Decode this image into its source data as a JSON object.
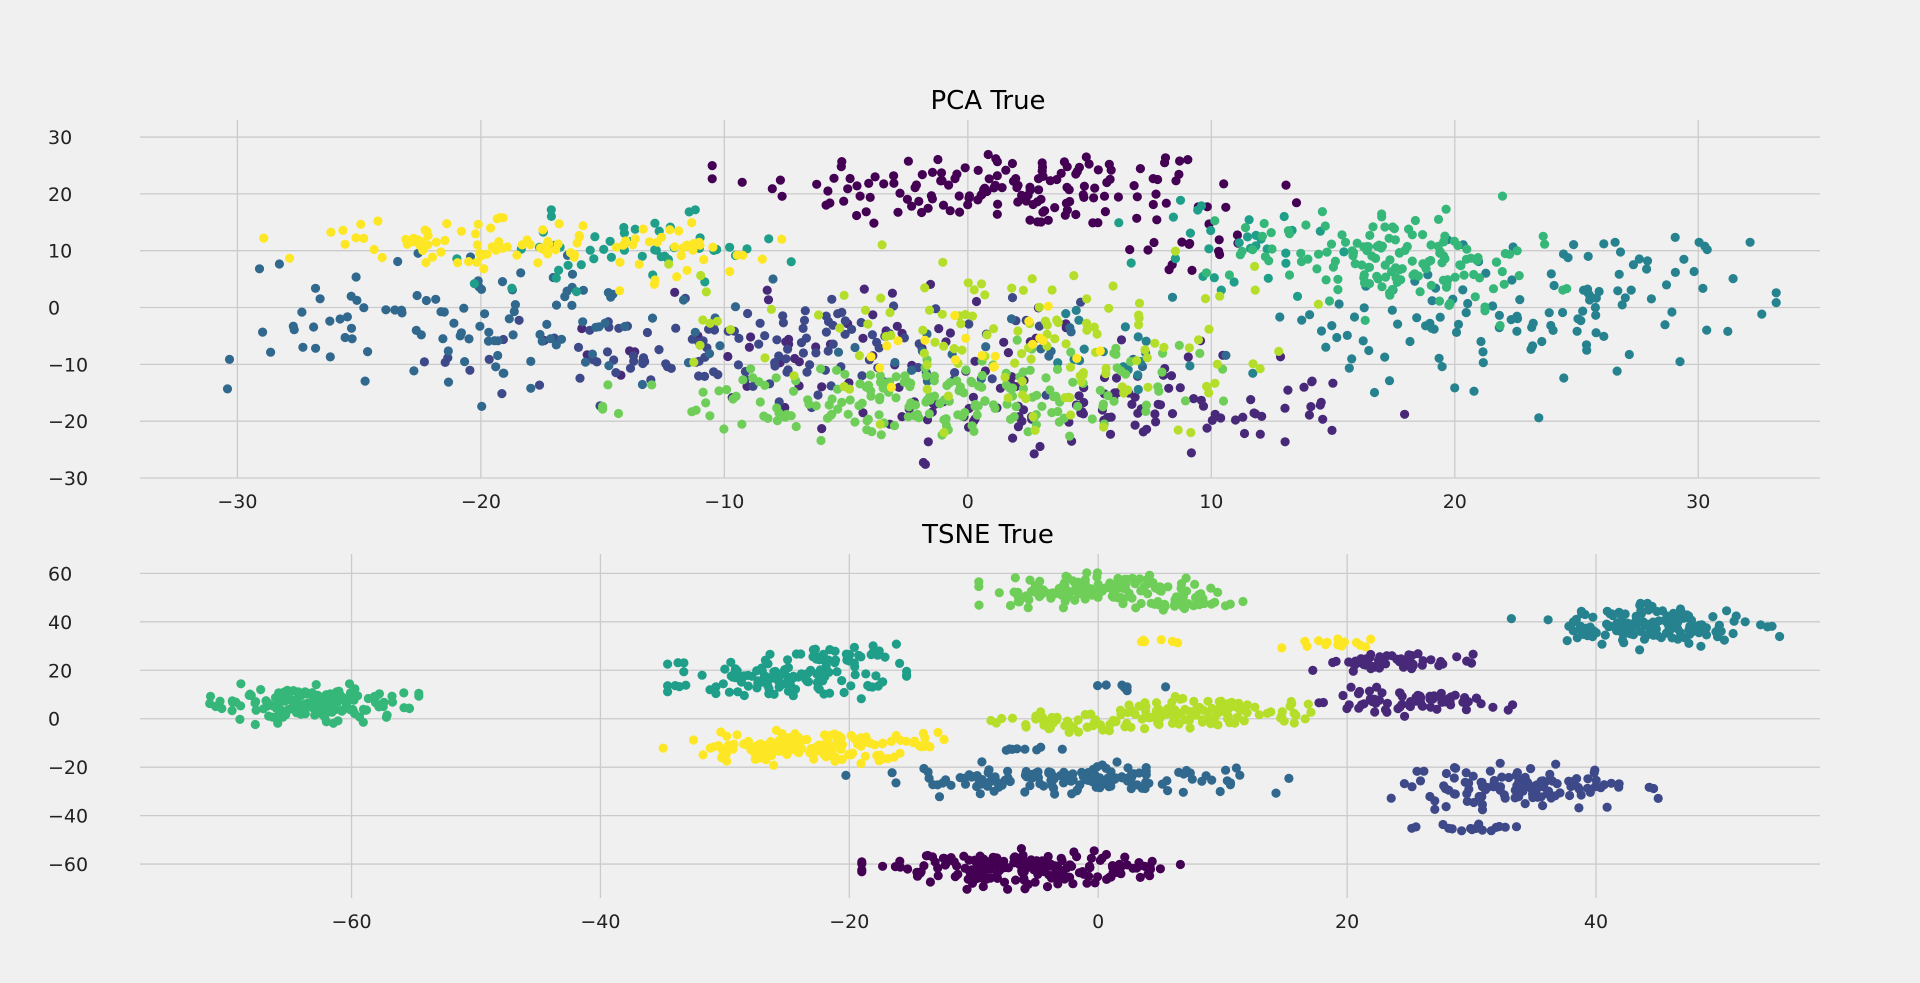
{
  "palette": [
    "#440154",
    "#482878",
    "#3e4989",
    "#31688e",
    "#26828e",
    "#1f9e89",
    "#35b779",
    "#6ece58",
    "#b5de2b",
    "#fde725"
  ],
  "chart_data": [
    {
      "type": "scatter",
      "title": "PCA True",
      "xlabel": "",
      "ylabel": "",
      "xlim": [
        -34.0,
        35.0
      ],
      "ylim": [
        -30.0,
        33.0
      ],
      "xticks": [
        -30,
        -20,
        -10,
        0,
        10,
        20,
        30
      ],
      "yticks": [
        -30,
        -20,
        -10,
        0,
        10,
        20,
        30
      ],
      "grid": true,
      "clusters": [
        {
          "class": 0,
          "center": [
            1.5,
            21
          ],
          "spread": [
            5,
            3.5
          ],
          "n": 150
        },
        {
          "class": 0,
          "center": [
            9,
            12
          ],
          "spread": [
            1.5,
            4
          ],
          "n": 20
        },
        {
          "class": 1,
          "center": [
            6,
            -18
          ],
          "spread": [
            5,
            4
          ],
          "n": 110
        },
        {
          "class": 1,
          "center": [
            -3,
            -6
          ],
          "spread": [
            6,
            5
          ],
          "n": 60
        },
        {
          "class": 2,
          "center": [
            -11,
            -8
          ],
          "spread": [
            5,
            4
          ],
          "n": 90
        },
        {
          "class": 2,
          "center": [
            -4,
            -7
          ],
          "spread": [
            4,
            4
          ],
          "n": 40
        },
        {
          "class": 3,
          "center": [
            -20,
            -3
          ],
          "spread": [
            5,
            6
          ],
          "n": 110
        },
        {
          "class": 3,
          "center": [
            1,
            -8
          ],
          "spread": [
            4,
            3
          ],
          "n": 20
        },
        {
          "class": 4,
          "center": [
            26,
            2
          ],
          "spread": [
            3,
            6
          ],
          "n": 80
        },
        {
          "class": 4,
          "center": [
            18,
            -5
          ],
          "spread": [
            4,
            6
          ],
          "n": 50
        },
        {
          "class": 4,
          "center": [
            6,
            -8
          ],
          "spread": [
            3,
            4
          ],
          "n": 20
        },
        {
          "class": 5,
          "center": [
            -14,
            10
          ],
          "spread": [
            3,
            3
          ],
          "n": 50
        },
        {
          "class": 5,
          "center": [
            11,
            10
          ],
          "spread": [
            2,
            5
          ],
          "n": 30
        },
        {
          "class": 6,
          "center": [
            17,
            10
          ],
          "spread": [
            3,
            4
          ],
          "n": 120
        },
        {
          "class": 6,
          "center": [
            20,
            4
          ],
          "spread": [
            2,
            4
          ],
          "n": 30
        },
        {
          "class": 7,
          "center": [
            -3,
            -17
          ],
          "spread": [
            5,
            3
          ],
          "n": 140
        },
        {
          "class": 7,
          "center": [
            4,
            -12
          ],
          "spread": [
            4,
            4
          ],
          "n": 60
        },
        {
          "class": 8,
          "center": [
            0,
            -2
          ],
          "spread": [
            6,
            6
          ],
          "n": 80
        },
        {
          "class": 8,
          "center": [
            6,
            -10
          ],
          "spread": [
            4,
            5
          ],
          "n": 50
        },
        {
          "class": 9,
          "center": [
            -20,
            11
          ],
          "spread": [
            4,
            2
          ],
          "n": 80
        },
        {
          "class": 9,
          "center": [
            -13,
            10
          ],
          "spread": [
            3,
            3
          ],
          "n": 30
        },
        {
          "class": 9,
          "center": [
            1,
            -7
          ],
          "spread": [
            3,
            4
          ],
          "n": 20
        }
      ]
    },
    {
      "type": "scatter",
      "title": "TSNE True",
      "xlabel": "",
      "ylabel": "",
      "xlim": [
        -77,
        58
      ],
      "ylim": [
        -74,
        68
      ],
      "xticks": [
        -60,
        -40,
        -20,
        0,
        20,
        40
      ],
      "yticks": [
        -60,
        -40,
        -20,
        0,
        20,
        40,
        60
      ],
      "grid": true,
      "clusters": [
        {
          "class": 0,
          "center": [
            -7,
            -62
          ],
          "spread": [
            5,
            3.5
          ],
          "n": 170
        },
        {
          "class": 0,
          "center": [
            3,
            -61
          ],
          "spread": [
            1.5,
            0.6
          ],
          "n": 8
        },
        {
          "class": 1,
          "center": [
            25,
            7
          ],
          "spread": [
            3.5,
            2.5
          ],
          "n": 70
        },
        {
          "class": 1,
          "center": [
            24,
            23
          ],
          "spread": [
            3,
            2
          ],
          "n": 50
        },
        {
          "class": 2,
          "center": [
            33,
            -28
          ],
          "spread": [
            5,
            4
          ],
          "n": 120
        },
        {
          "class": 2,
          "center": [
            30,
            -45
          ],
          "spread": [
            2,
            0.8
          ],
          "n": 20
        },
        {
          "class": 3,
          "center": [
            -3,
            -25
          ],
          "spread": [
            8,
            3
          ],
          "n": 150
        },
        {
          "class": 3,
          "center": [
            -5,
            -12
          ],
          "spread": [
            1.5,
            0.6
          ],
          "n": 8
        },
        {
          "class": 3,
          "center": [
            3,
            13
          ],
          "spread": [
            1.5,
            1
          ],
          "n": 8
        },
        {
          "class": 4,
          "center": [
            44,
            38
          ],
          "spread": [
            4.5,
            4
          ],
          "n": 160
        },
        {
          "class": 5,
          "center": [
            -25,
            17
          ],
          "spread": [
            4,
            4
          ],
          "n": 120
        },
        {
          "class": 5,
          "center": [
            -20,
            26
          ],
          "spread": [
            2.5,
            2
          ],
          "n": 30
        },
        {
          "class": 6,
          "center": [
            -63,
            6
          ],
          "spread": [
            3.5,
            3.5
          ],
          "n": 170
        },
        {
          "class": 7,
          "center": [
            0,
            53
          ],
          "spread": [
            4,
            3
          ],
          "n": 140
        },
        {
          "class": 7,
          "center": [
            7,
            48
          ],
          "spread": [
            2.5,
            1.5
          ],
          "n": 30
        },
        {
          "class": 8,
          "center": [
            9,
            3
          ],
          "spread": [
            4,
            3
          ],
          "n": 110
        },
        {
          "class": 8,
          "center": [
            -2,
            -2
          ],
          "spread": [
            3,
            2
          ],
          "n": 40
        },
        {
          "class": 9,
          "center": [
            -24,
            -12
          ],
          "spread": [
            5,
            3
          ],
          "n": 150
        },
        {
          "class": 9,
          "center": [
            -14,
            -9
          ],
          "spread": [
            1,
            2
          ],
          "n": 10
        },
        {
          "class": 9,
          "center": [
            19,
            31
          ],
          "spread": [
            2,
            1
          ],
          "n": 15
        },
        {
          "class": 9,
          "center": [
            4,
            32
          ],
          "spread": [
            1,
            0.6
          ],
          "n": 6
        }
      ]
    }
  ]
}
